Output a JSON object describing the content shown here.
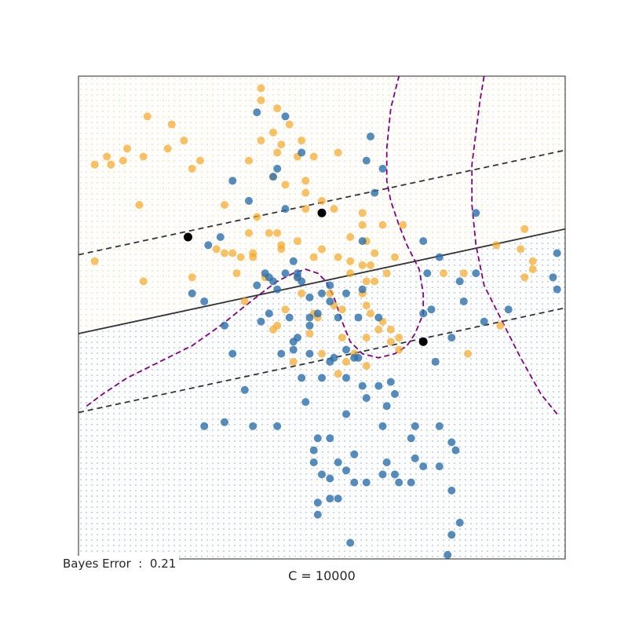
{
  "chart_data": {
    "type": "scatter",
    "title": "",
    "xlabel": "C = 10000",
    "ylabel": "",
    "xlim": [
      -3,
      3
    ],
    "ylim": [
      -3,
      3
    ],
    "grid": false,
    "annotation": {
      "label": "Bayes Error",
      "separator": ":",
      "value": "0.21"
    },
    "colors": {
      "orange": "#f5a623",
      "blue": "#2a6fab",
      "purple": "#800080",
      "line": "#333333",
      "support": "#000000"
    },
    "series": [
      {
        "class": "orange",
        "points": [
          [
            -2.4,
            2.1
          ],
          [
            -1.9,
            2.1
          ],
          [
            -1.85,
            2.4
          ],
          [
            -2.6,
            1.9
          ],
          [
            -2.8,
            1.9
          ],
          [
            -2.65,
            2.0
          ],
          [
            -2.45,
            1.95
          ],
          [
            -2.2,
            2.0
          ],
          [
            -2.15,
            2.5
          ],
          [
            -1.7,
            2.2
          ],
          [
            -1.6,
            1.85
          ],
          [
            -1.5,
            1.95
          ],
          [
            -2.25,
            1.4
          ],
          [
            -2.8,
            0.7
          ],
          [
            -2.2,
            0.45
          ],
          [
            -1.6,
            0.5
          ],
          [
            -0.75,
            2.85
          ],
          [
            -0.75,
            2.7
          ],
          [
            -0.55,
            2.6
          ],
          [
            -0.6,
            2.3
          ],
          [
            -0.5,
            2.15
          ],
          [
            -0.4,
            2.4
          ],
          [
            -0.75,
            2.2
          ],
          [
            -0.3,
            2.0
          ],
          [
            -0.9,
            1.95
          ],
          [
            -0.6,
            1.75
          ],
          [
            -0.55,
            2.05
          ],
          [
            -0.25,
            2.2
          ],
          [
            -0.45,
            1.65
          ],
          [
            -0.1,
            2.0
          ],
          [
            -0.2,
            1.7
          ],
          [
            0.2,
            2.05
          ],
          [
            -0.2,
            1.55
          ],
          [
            -0.2,
            1.35
          ],
          [
            -1.2,
            1.4
          ],
          [
            -0.8,
            1.25
          ],
          [
            -0.9,
            1.05
          ],
          [
            -0.65,
            1.05
          ],
          [
            -0.55,
            1.05
          ],
          [
            -0.85,
            0.8
          ],
          [
            -1.05,
            0.55
          ],
          [
            -1.3,
            0.85
          ],
          [
            -1.2,
            0.8
          ],
          [
            -1.1,
            0.8
          ],
          [
            -1.0,
            0.75
          ],
          [
            -0.85,
            0.75
          ],
          [
            -0.5,
            0.9
          ],
          [
            -0.3,
            0.95
          ],
          [
            -0.5,
            0.85
          ],
          [
            -0.1,
            0.75
          ],
          [
            -0.7,
            0.5
          ],
          [
            -0.3,
            0.5
          ],
          [
            -0.25,
            0.3
          ],
          [
            -0.45,
            0.1
          ],
          [
            -0.55,
            -0.1
          ],
          [
            -0.95,
            0.2
          ],
          [
            -0.6,
            -0.15
          ],
          [
            0.0,
            1.45
          ],
          [
            0.15,
            1.35
          ],
          [
            0.5,
            1.3
          ],
          [
            0.5,
            1.15
          ],
          [
            0.35,
            1.0
          ],
          [
            0.55,
            0.95
          ],
          [
            0.0,
            0.85
          ],
          [
            0.2,
            0.75
          ],
          [
            0.35,
            0.7
          ],
          [
            0.5,
            0.65
          ],
          [
            0.65,
            0.8
          ],
          [
            0.6,
            0.65
          ],
          [
            0.75,
            1.15
          ],
          [
            0.9,
            0.75
          ],
          [
            0.8,
            0.55
          ],
          [
            0.35,
            0.55
          ],
          [
            0.55,
            0.45
          ],
          [
            0.65,
            0.45
          ],
          [
            0.5,
            0.3
          ],
          [
            0.55,
            0.15
          ],
          [
            0.6,
            0.05
          ],
          [
            0.7,
            -0.15
          ],
          [
            0.75,
            -0.05
          ],
          [
            0.85,
            -0.15
          ],
          [
            0.95,
            -0.25
          ],
          [
            0.55,
            -0.25
          ],
          [
            0.4,
            -0.45
          ],
          [
            0.55,
            -0.6
          ],
          [
            0.85,
            -0.3
          ],
          [
            0.95,
            -0.4
          ],
          [
            0.3,
            -0.55
          ],
          [
            0.25,
            -0.25
          ],
          [
            0.25,
            0.1
          ],
          [
            0.1,
            0.3
          ],
          [
            0.15,
            0.15
          ],
          [
            -0.1,
            0.05
          ],
          [
            -0.05,
            0.0
          ],
          [
            -0.15,
            -0.2
          ],
          [
            -0.35,
            -0.55
          ],
          [
            0.2,
            -0.7
          ],
          [
            0.0,
            -0.45
          ],
          [
            1.0,
            1.15
          ],
          [
            1.5,
            0.55
          ],
          [
            1.75,
            0.55
          ],
          [
            2.15,
            0.9
          ],
          [
            2.5,
            1.1
          ],
          [
            2.45,
            0.85
          ],
          [
            2.6,
            0.7
          ],
          [
            2.6,
            0.6
          ],
          [
            2.5,
            0.5
          ],
          [
            1.8,
            -0.45
          ],
          [
            2.2,
            -0.1
          ]
        ]
      },
      {
        "class": "blue",
        "points": [
          [
            -0.8,
            2.55
          ],
          [
            -0.45,
            2.5
          ],
          [
            -0.25,
            2.05
          ],
          [
            -0.55,
            1.85
          ],
          [
            -0.6,
            1.75
          ],
          [
            -1.1,
            1.7
          ],
          [
            -0.9,
            1.45
          ],
          [
            -0.45,
            1.35
          ],
          [
            -1.25,
            1.0
          ],
          [
            -1.4,
            0.9
          ],
          [
            -0.7,
            0.55
          ],
          [
            -0.6,
            0.45
          ],
          [
            -0.45,
            0.55
          ],
          [
            -0.3,
            0.55
          ],
          [
            -0.35,
            0.7
          ],
          [
            -0.65,
            0.5
          ],
          [
            -0.8,
            0.4
          ],
          [
            -0.55,
            0.35
          ],
          [
            -0.65,
            0.05
          ],
          [
            -0.4,
            0.0
          ],
          [
            -0.15,
            -0.1
          ],
          [
            -0.35,
            -0.3
          ],
          [
            -0.5,
            -0.45
          ],
          [
            -0.15,
            -0.45
          ],
          [
            -0.25,
            -0.75
          ],
          [
            -0.35,
            -0.4
          ],
          [
            -0.75,
            -0.05
          ],
          [
            -0.3,
            -0.25
          ],
          [
            -1.1,
            -0.45
          ],
          [
            -0.95,
            -0.9
          ],
          [
            -1.2,
            -0.1
          ],
          [
            -0.3,
            0.5
          ],
          [
            -0.25,
            0.45
          ],
          [
            -0.15,
            0.0
          ],
          [
            -0.05,
            0.05
          ],
          [
            0.2,
            0.0
          ],
          [
            0.0,
            0.3
          ],
          [
            0.3,
            0.3
          ],
          [
            0.1,
            0.2
          ],
          [
            -0.15,
            0.25
          ],
          [
            0.1,
            0.4
          ],
          [
            -1.6,
            0.3
          ],
          [
            -1.45,
            0.2
          ],
          [
            0.6,
            2.25
          ],
          [
            0.55,
            1.95
          ],
          [
            0.75,
            1.85
          ],
          [
            0.65,
            1.55
          ],
          [
            0.5,
            0.95
          ],
          [
            0.5,
            0.35
          ],
          [
            0.45,
            0.0
          ],
          [
            0.7,
            0.0
          ],
          [
            0.3,
            -0.4
          ],
          [
            0.4,
            -0.5
          ],
          [
            0.15,
            -0.5
          ],
          [
            0.5,
            -0.85
          ],
          [
            0.7,
            -0.85
          ],
          [
            0.85,
            -0.8
          ],
          [
            0.9,
            -0.95
          ],
          [
            0.1,
            -0.55
          ],
          [
            0.0,
            -0.75
          ],
          [
            0.3,
            -0.75
          ],
          [
            0.55,
            -1.0
          ],
          [
            -0.05,
            -1.5
          ],
          [
            0.1,
            -1.5
          ],
          [
            -0.85,
            -1.35
          ],
          [
            -1.45,
            -1.35
          ],
          [
            -1.2,
            -1.3
          ],
          [
            -0.55,
            -1.35
          ],
          [
            -0.1,
            -1.65
          ],
          [
            -0.1,
            -1.8
          ],
          [
            0.2,
            -1.8
          ],
          [
            0.3,
            -1.9
          ],
          [
            0.0,
            -1.95
          ],
          [
            0.8,
            -1.8
          ],
          [
            0.4,
            -2.05
          ],
          [
            0.1,
            -2.0
          ],
          [
            0.55,
            -2.05
          ],
          [
            0.9,
            -1.95
          ],
          [
            1.1,
            -2.05
          ],
          [
            -0.05,
            -2.45
          ],
          [
            1.25,
            -1.85
          ],
          [
            1.15,
            -1.75
          ],
          [
            0.1,
            -2.25
          ],
          [
            1.45,
            -1.35
          ],
          [
            0.75,
            -1.35
          ],
          [
            1.1,
            -1.5
          ],
          [
            1.15,
            -1.35
          ],
          [
            0.75,
            -1.95
          ],
          [
            0.95,
            -2.05
          ],
          [
            0.2,
            -2.25
          ],
          [
            -0.2,
            -1.05
          ],
          [
            0.3,
            -1.2
          ],
          [
            0.45,
            -0.5
          ],
          [
            1.25,
            0.95
          ],
          [
            1.45,
            0.75
          ],
          [
            1.7,
            0.45
          ],
          [
            1.9,
            0.55
          ],
          [
            1.75,
            0.2
          ],
          [
            2.0,
            -0.05
          ],
          [
            2.3,
            0.1
          ],
          [
            2.9,
            0.8
          ],
          [
            1.3,
            0.55
          ],
          [
            1.35,
            0.1
          ],
          [
            1.25,
            0.05
          ],
          [
            1.6,
            -0.25
          ],
          [
            1.9,
            1.3
          ],
          [
            2.85,
            0.5
          ],
          [
            2.9,
            0.35
          ],
          [
            1.4,
            -0.55
          ],
          [
            1.6,
            -1.55
          ],
          [
            1.65,
            -1.65
          ],
          [
            1.45,
            -1.85
          ],
          [
            1.6,
            -2.15
          ],
          [
            1.7,
            -2.55
          ],
          [
            1.6,
            -2.7
          ],
          [
            1.55,
            -2.95
          ],
          [
            0.35,
            -2.8
          ],
          [
            -0.05,
            -2.3
          ],
          [
            0.8,
            -1.1
          ],
          [
            0.4,
            -1.7
          ]
        ]
      }
    ],
    "support_vectors": [
      [
        -1.65,
        1.0
      ],
      [
        0.0,
        1.3
      ],
      [
        1.25,
        -0.3
      ]
    ],
    "decision_boundary": [
      [
        -3,
        -0.2
      ],
      [
        3,
        1.1
      ]
    ],
    "margin_upper": [
      [
        -3,
        0.78
      ],
      [
        3,
        2.08
      ]
    ],
    "margin_lower": [
      [
        -3,
        -1.18
      ],
      [
        3,
        0.12
      ]
    ],
    "bayes_boundary": [
      [
        [
          -2.9,
          -1.1
        ],
        [
          -2.7,
          -0.95
        ],
        [
          -2.4,
          -0.75
        ],
        [
          -2.0,
          -0.55
        ],
        [
          -1.6,
          -0.35
        ],
        [
          -1.25,
          -0.1
        ],
        [
          -1.0,
          0.1
        ],
        [
          -0.75,
          0.3
        ],
        [
          -0.55,
          0.45
        ],
        [
          -0.35,
          0.55
        ],
        [
          -0.2,
          0.6
        ],
        [
          -0.05,
          0.55
        ],
        [
          0.05,
          0.45
        ],
        [
          0.15,
          0.25
        ],
        [
          0.25,
          -0.05
        ],
        [
          0.35,
          -0.3
        ],
        [
          0.5,
          -0.45
        ],
        [
          0.7,
          -0.5
        ],
        [
          0.9,
          -0.45
        ],
        [
          1.05,
          -0.35
        ],
        [
          1.15,
          -0.2
        ],
        [
          1.25,
          0.05
        ],
        [
          1.25,
          0.3
        ],
        [
          1.2,
          0.6
        ],
        [
          1.05,
          0.9
        ],
        [
          0.95,
          1.15
        ],
        [
          0.85,
          1.45
        ],
        [
          0.8,
          1.7
        ],
        [
          0.8,
          2.1
        ],
        [
          0.85,
          2.6
        ],
        [
          0.95,
          3.0
        ]
      ],
      [
        [
          2.0,
          3.0
        ],
        [
          1.95,
          2.7
        ],
        [
          1.9,
          2.3
        ],
        [
          1.85,
          1.9
        ],
        [
          1.85,
          1.4
        ],
        [
          1.9,
          0.9
        ],
        [
          2.0,
          0.4
        ],
        [
          2.2,
          0.0
        ],
        [
          2.45,
          -0.5
        ],
        [
          2.7,
          -0.95
        ],
        [
          2.9,
          -1.2
        ]
      ]
    ]
  }
}
